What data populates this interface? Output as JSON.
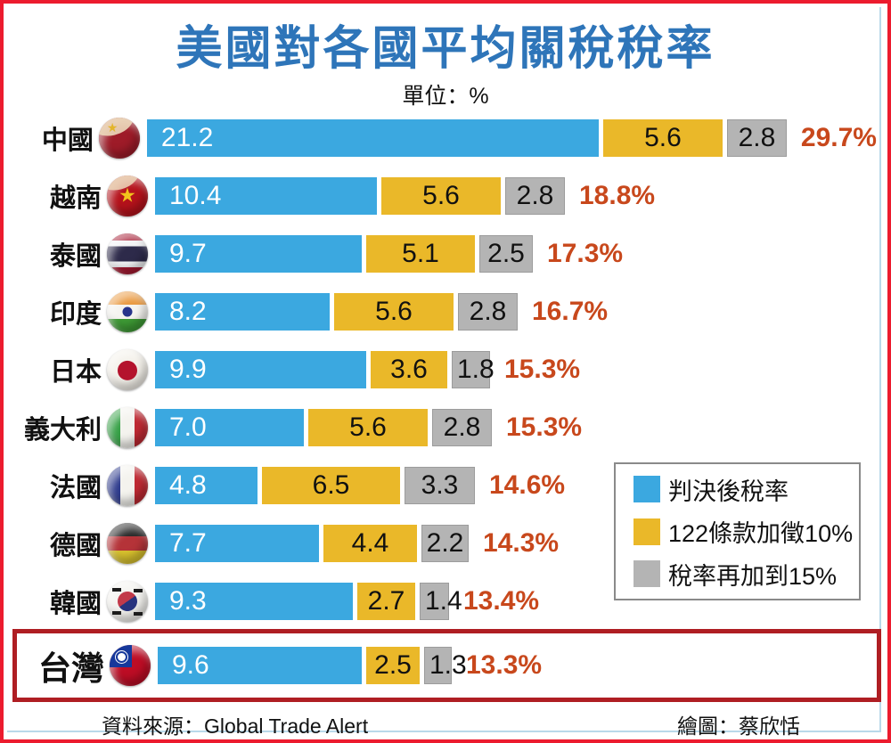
{
  "header": {
    "title": "美國對各國平均關稅稅率",
    "unit_label": "單位：%"
  },
  "legend": {
    "items": [
      {
        "label": "判決後稅率",
        "color": "#3BA8E0"
      },
      {
        "label": "122條款加徵10%",
        "color": "#EAB829"
      },
      {
        "label": "稅率再加到15%",
        "color": "#B4B4B4"
      }
    ]
  },
  "chart_data": {
    "type": "bar",
    "orientation": "horizontal",
    "stacked": true,
    "title": "美國對各國平均關稅稅率",
    "unit": "%",
    "series_names": [
      "判決後稅率",
      "122條款加徵10%",
      "稅率再加到15%"
    ],
    "colors": {
      "blue": "#3BA8E0",
      "yellow": "#EAB829",
      "gray": "#B4B4B4",
      "total_text": "#C8481C"
    },
    "rows": [
      {
        "country": "中國",
        "flag": "china",
        "values": [
          21.2,
          5.6,
          2.8
        ],
        "total": "29.7%",
        "highlighted": false
      },
      {
        "country": "越南",
        "flag": "vietnam",
        "values": [
          10.4,
          5.6,
          2.8
        ],
        "total": "18.8%",
        "highlighted": false
      },
      {
        "country": "泰國",
        "flag": "thailand",
        "values": [
          9.7,
          5.1,
          2.5
        ],
        "total": "17.3%",
        "highlighted": false
      },
      {
        "country": "印度",
        "flag": "india",
        "values": [
          8.2,
          5.6,
          2.8
        ],
        "total": "16.7%",
        "highlighted": false
      },
      {
        "country": "日本",
        "flag": "japan",
        "values": [
          9.9,
          3.6,
          1.8
        ],
        "total": "15.3%",
        "highlighted": false
      },
      {
        "country": "義大利",
        "flag": "italy",
        "values": [
          7.0,
          5.6,
          2.8
        ],
        "total": "15.3%",
        "highlighted": false
      },
      {
        "country": "法國",
        "flag": "france",
        "values": [
          4.8,
          6.5,
          3.3
        ],
        "total": "14.6%",
        "highlighted": false
      },
      {
        "country": "德國",
        "flag": "germany",
        "values": [
          7.7,
          4.4,
          2.2
        ],
        "total": "14.3%",
        "highlighted": false
      },
      {
        "country": "韓國",
        "flag": "korea",
        "values": [
          9.3,
          2.7,
          1.4
        ],
        "total": "13.4%",
        "highlighted": false
      },
      {
        "country": "台灣",
        "flag": "taiwan",
        "values": [
          9.6,
          2.5,
          1.3
        ],
        "total": "13.3%",
        "highlighted": true
      }
    ]
  },
  "footer": {
    "source": "資料來源：Global Trade Alert",
    "credit": "繪圖：蔡欣恬"
  }
}
